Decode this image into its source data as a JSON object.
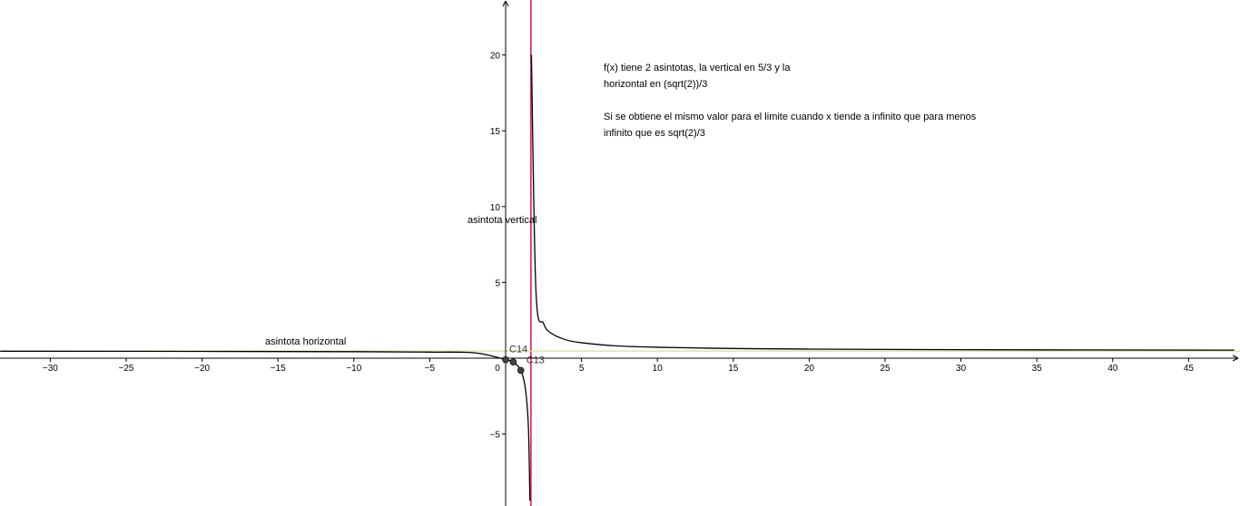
{
  "chart_data": {
    "type": "line",
    "title": "",
    "xlabel": "",
    "ylabel": "",
    "xlim": [
      -33.3,
      48.3
    ],
    "ylim": [
      -9.4,
      23.6
    ],
    "grid": false,
    "x_ticks": [
      -30,
      -25,
      -20,
      -15,
      -10,
      -5,
      0,
      5,
      10,
      15,
      20,
      25,
      30,
      35,
      40,
      45
    ],
    "y_ticks": [
      -5,
      5,
      10,
      15,
      20
    ],
    "x_tick_labels": [
      "−30",
      "−25",
      "−20",
      "−15",
      "−10",
      "−5",
      "0",
      "5",
      "10",
      "15",
      "20",
      "25",
      "30",
      "35",
      "40",
      "45"
    ],
    "y_tick_labels": [
      "−5",
      "5",
      "10",
      "15",
      "20"
    ],
    "function": {
      "name": "f",
      "color": "#000000",
      "description_points_right": [
        {
          "x": 1.7,
          "y": 20.0
        },
        {
          "x": 2.0,
          "y": 4.4
        },
        {
          "x": 2.5,
          "y": 2.3
        },
        {
          "x": 3.0,
          "y": 1.65
        },
        {
          "x": 4.0,
          "y": 1.2
        },
        {
          "x": 5.0,
          "y": 1.02
        },
        {
          "x": 7.0,
          "y": 0.83
        },
        {
          "x": 10.0,
          "y": 0.72
        },
        {
          "x": 15.0,
          "y": 0.64
        },
        {
          "x": 20.0,
          "y": 0.6
        },
        {
          "x": 30.0,
          "y": 0.56
        },
        {
          "x": 48.0,
          "y": 0.53
        }
      ],
      "description_points_left": [
        {
          "x": -33.3,
          "y": 0.46
        },
        {
          "x": -20.0,
          "y": 0.45
        },
        {
          "x": -10.0,
          "y": 0.43
        },
        {
          "x": -5.0,
          "y": 0.4
        },
        {
          "x": -2.0,
          "y": 0.35
        },
        {
          "x": 0.0,
          "y": -0.1
        },
        {
          "x": 0.5,
          "y": -0.25
        },
        {
          "x": 1.0,
          "y": -0.8
        },
        {
          "x": 1.3,
          "y": -2.0
        },
        {
          "x": 1.5,
          "y": -4.5
        },
        {
          "x": 1.6,
          "y": -9.4
        }
      ]
    },
    "asymptotes": [
      {
        "kind": "vertical",
        "x": 1.6667,
        "color": "#e0204a",
        "label": "asintota vertical"
      },
      {
        "kind": "horizontal",
        "y": 0.4714,
        "color": "#d6dd9e",
        "label": "asintota horizontal"
      }
    ],
    "points": [
      {
        "label": "C14",
        "x": 0.0,
        "y": -0.1
      },
      {
        "label": "",
        "x": 0.5,
        "y": -0.25
      },
      {
        "label": "C13",
        "x": 1.0,
        "y": -0.8
      }
    ],
    "annotations": [
      {
        "line1": "f(x) tiene 2 asintotas, la vertical en 5/3 y la",
        "line2": "horizontal en (sqrt(2))/3"
      },
      {
        "line1": "Si se obtiene el mismo valor para el limite cuando x tiende a infinito que para menos",
        "line2": "infinito que es  sqrt(2)/3"
      }
    ]
  }
}
